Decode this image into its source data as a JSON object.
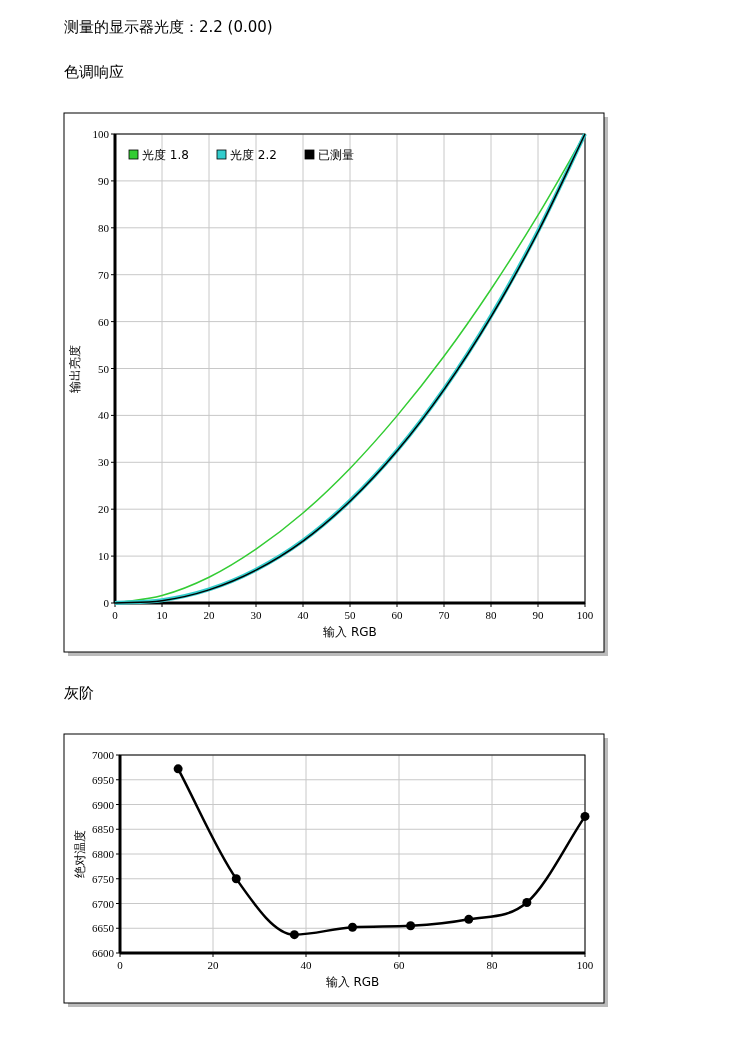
{
  "chart_data": [
    {
      "type": "line",
      "title": "测量的显示器光度：2.2 (0.00)",
      "subtitle": "色调响应",
      "xlabel": "输入 RGB",
      "ylabel": "输出亮度",
      "x": [
        0,
        10,
        20,
        30,
        40,
        50,
        60,
        70,
        80,
        90,
        100
      ],
      "series": [
        {
          "name": "光度 1.8",
          "color": "#33cc33",
          "values": [
            0,
            1.6,
            5.5,
            11.5,
            19.2,
            28.7,
            39.9,
            52.6,
            66.9,
            82.7,
            100
          ]
        },
        {
          "name": "光度 2.2",
          "color": "#33cccc",
          "values": [
            0,
            0.6,
            2.9,
            7.1,
            13.3,
            21.8,
            32.5,
            45.6,
            61.2,
            79.3,
            100
          ]
        },
        {
          "name": "已测量",
          "color": "#000000",
          "values": [
            0,
            0.5,
            2.8,
            7,
            13.2,
            21.7,
            32.4,
            45.5,
            61,
            79.1,
            100
          ]
        }
      ],
      "xlim": [
        0,
        100
      ],
      "xticks": [
        0,
        10,
        20,
        30,
        40,
        50,
        60,
        70,
        80,
        90,
        100
      ],
      "ylim": [
        0,
        100
      ],
      "yticks": [
        0,
        10,
        20,
        30,
        40,
        50,
        60,
        70,
        80,
        90,
        100
      ],
      "grid": true,
      "legend": "top left",
      "marker": "none"
    },
    {
      "type": "line",
      "title": "灰阶",
      "xlabel": "输入 RGB",
      "ylabel": "绝对温度",
      "x": [
        12.5,
        25,
        37.5,
        50,
        62.5,
        75,
        87.5,
        100
      ],
      "series": [
        {
          "color": "#000000",
          "values": [
            6972,
            6750,
            6637,
            6652,
            6655,
            6668,
            6702,
            6876
          ]
        }
      ],
      "xlim": [
        0,
        100
      ],
      "xticks": [
        0,
        20,
        40,
        60,
        80,
        100
      ],
      "ylim": [
        6600,
        7000
      ],
      "yticks": [
        6600,
        6650,
        6700,
        6750,
        6800,
        6850,
        6900,
        6950,
        7000
      ],
      "grid": true,
      "legend": false,
      "marker": "circle"
    }
  ]
}
